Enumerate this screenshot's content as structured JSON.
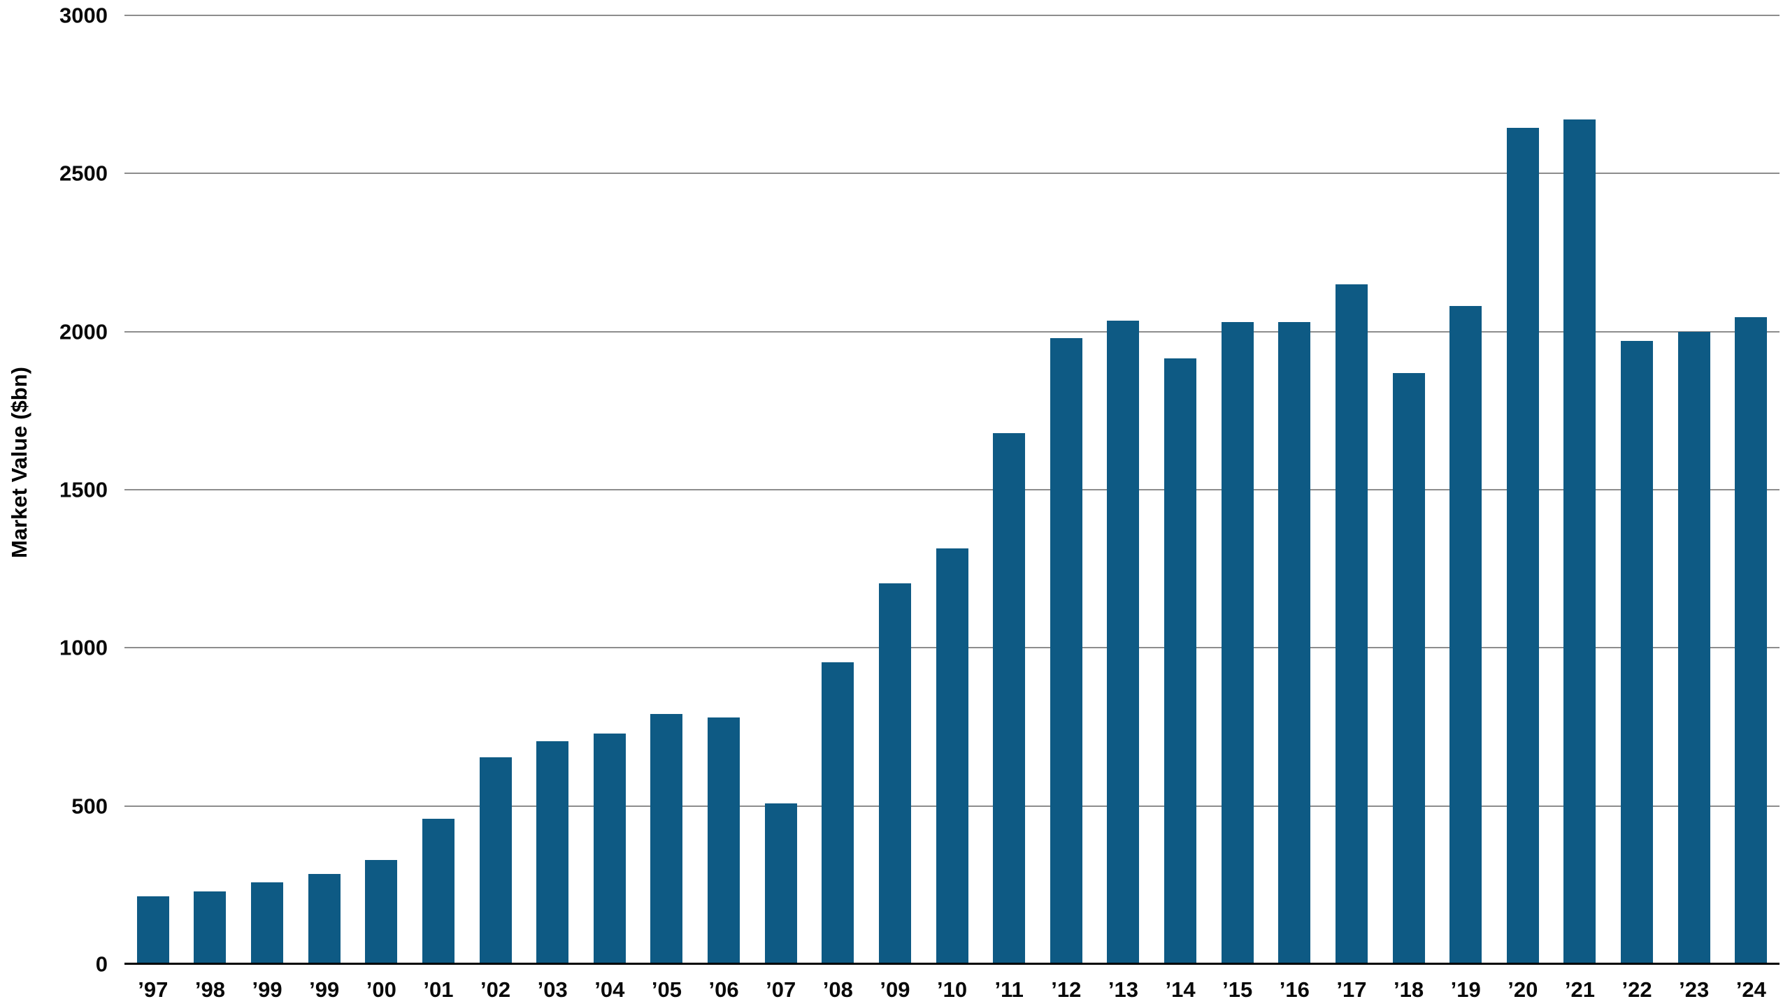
{
  "chart_data": {
    "type": "bar",
    "title": "",
    "xlabel": "",
    "ylabel": "Market Value ($bn)",
    "ylim": [
      0,
      3000
    ],
    "yticks": [
      0,
      500,
      1000,
      1500,
      2000,
      2500,
      3000
    ],
    "grid": true,
    "legend": false,
    "bar_color": "#0e5a84",
    "gridline_color": "#8d8d8d",
    "axis_line_color": "#000000",
    "categories": [
      "’97",
      "’98",
      "’99",
      "’99",
      "’00",
      "’01",
      "’02",
      "’03",
      "’04",
      "’05",
      "’06",
      "’07",
      "’08",
      "’09",
      "’10",
      "’11",
      "’12",
      "’13",
      "’14",
      "’15",
      "’16",
      "’17",
      "’18",
      "’19",
      "’20",
      "’21",
      "’22",
      "’23",
      "’24"
    ],
    "values": [
      215,
      230,
      258,
      285,
      330,
      460,
      655,
      705,
      730,
      790,
      780,
      508,
      955,
      1205,
      1315,
      1680,
      1980,
      2035,
      1915,
      2030,
      2030,
      2150,
      1870,
      2080,
      2645,
      2670,
      1970,
      2000,
      2045
    ]
  }
}
